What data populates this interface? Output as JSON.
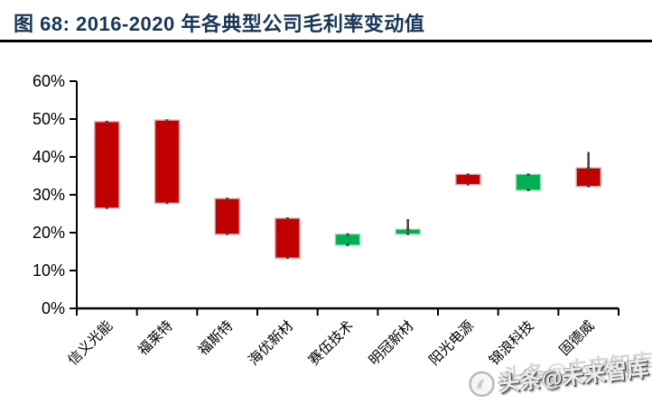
{
  "figure": {
    "title": "图 68:  2016-2020 年各典型公司毛利率变动值"
  },
  "watermark": {
    "text": "头条@未来智库",
    "icon": "toutiao-logo"
  },
  "chart_data": {
    "type": "candlestick",
    "title": "2016-2020 年各典型公司毛利率变动值",
    "unit": "percent",
    "categories": [
      "信义光能",
      "福莱特",
      "福斯特",
      "海优新材",
      "赛伍技术",
      "明冠新材",
      "阳光电源",
      "锦浪科技",
      "固德威"
    ],
    "series": [
      {
        "company": "信义光能",
        "box_low": 26.5,
        "box_high": 49.3,
        "change": "decrease"
      },
      {
        "company": "福莱特",
        "box_low": 27.8,
        "box_high": 49.7,
        "change": "decrease"
      },
      {
        "company": "福斯特",
        "box_low": 19.6,
        "box_high": 29.0,
        "change": "decrease"
      },
      {
        "company": "海优新材",
        "box_low": 13.3,
        "box_high": 23.8,
        "change": "decrease"
      },
      {
        "company": "赛伍技术",
        "box_low": 16.7,
        "box_high": 19.6,
        "change": "increase"
      },
      {
        "company": "明冠新材",
        "box_low": 19.6,
        "box_high": 20.9,
        "whisker_high": 23.6,
        "change": "increase"
      },
      {
        "company": "阳光电源",
        "box_low": 32.7,
        "box_high": 35.4,
        "change": "decrease"
      },
      {
        "company": "锦浪科技",
        "box_low": 31.2,
        "box_high": 35.4,
        "change": "increase"
      },
      {
        "company": "固德威",
        "box_low": 32.2,
        "box_high": 37.1,
        "whisker_high": 41.3,
        "change": "decrease"
      }
    ],
    "ylim": [
      0,
      60
    ],
    "ytick_values": [
      0,
      10,
      20,
      30,
      40,
      50,
      60
    ],
    "ytick_labels": [
      "0%",
      "10%",
      "20%",
      "30%",
      "40%",
      "50%",
      "60%"
    ],
    "xlabel": "",
    "ylabel": "",
    "grid": false,
    "legend": false,
    "x_label_rotation_deg": -45,
    "colors": {
      "decrease_fill": "#C00000",
      "decrease_border": "#E2A0A0",
      "increase_fill": "#00B050",
      "increase_border": "#8FDCB2",
      "whisker": "#404040",
      "axis": "#000000",
      "title_accent": "#17365D"
    }
  }
}
